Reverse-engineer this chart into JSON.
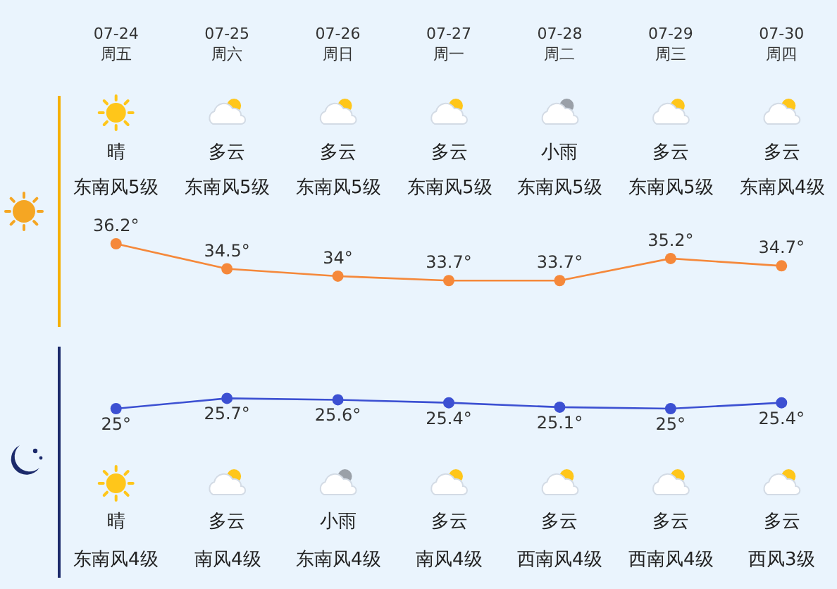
{
  "chart_data": {
    "type": "line",
    "categories": [
      "07-24\n周五",
      "07-25\n周六",
      "07-26\n周日",
      "07-27\n周一",
      "07-28\n周二",
      "07-29\n周三",
      "07-30\n周四"
    ],
    "series": [
      {
        "color": "#f5883a",
        "values": [
          36.2,
          34.5,
          34,
          33.7,
          33.7,
          35.2,
          34.7
        ],
        "value_labels": [
          "36.2°",
          "34.5°",
          "34°",
          "33.7°",
          "33.7°",
          "35.2°",
          "34.7°"
        ]
      },
      {
        "color": "#3c50d2",
        "values": [
          25,
          25.7,
          25.6,
          25.4,
          25.1,
          25,
          25.4
        ],
        "value_labels": [
          "25°",
          "25.7°",
          "25.6°",
          "25.4°",
          "25.1°",
          "25°",
          "25.4°"
        ]
      }
    ],
    "marker": "circle",
    "grid": false,
    "legend": false,
    "annotations": [
      "晴",
      "东南风5级",
      "晴",
      "东南风4级",
      "多云",
      "东南风5级",
      "多云",
      "南风4级",
      "多云",
      "东南风5级",
      "小雨",
      "东南风4级",
      "多云",
      "东南风5级",
      "多云",
      "南风4级",
      "小雨",
      "东南风5级",
      "多云",
      "西南风4级",
      "多云",
      "东南风5级",
      "多云",
      "西南风4级",
      "多云",
      "东南风4级",
      "多云",
      "西风3级"
    ]
  }
}
